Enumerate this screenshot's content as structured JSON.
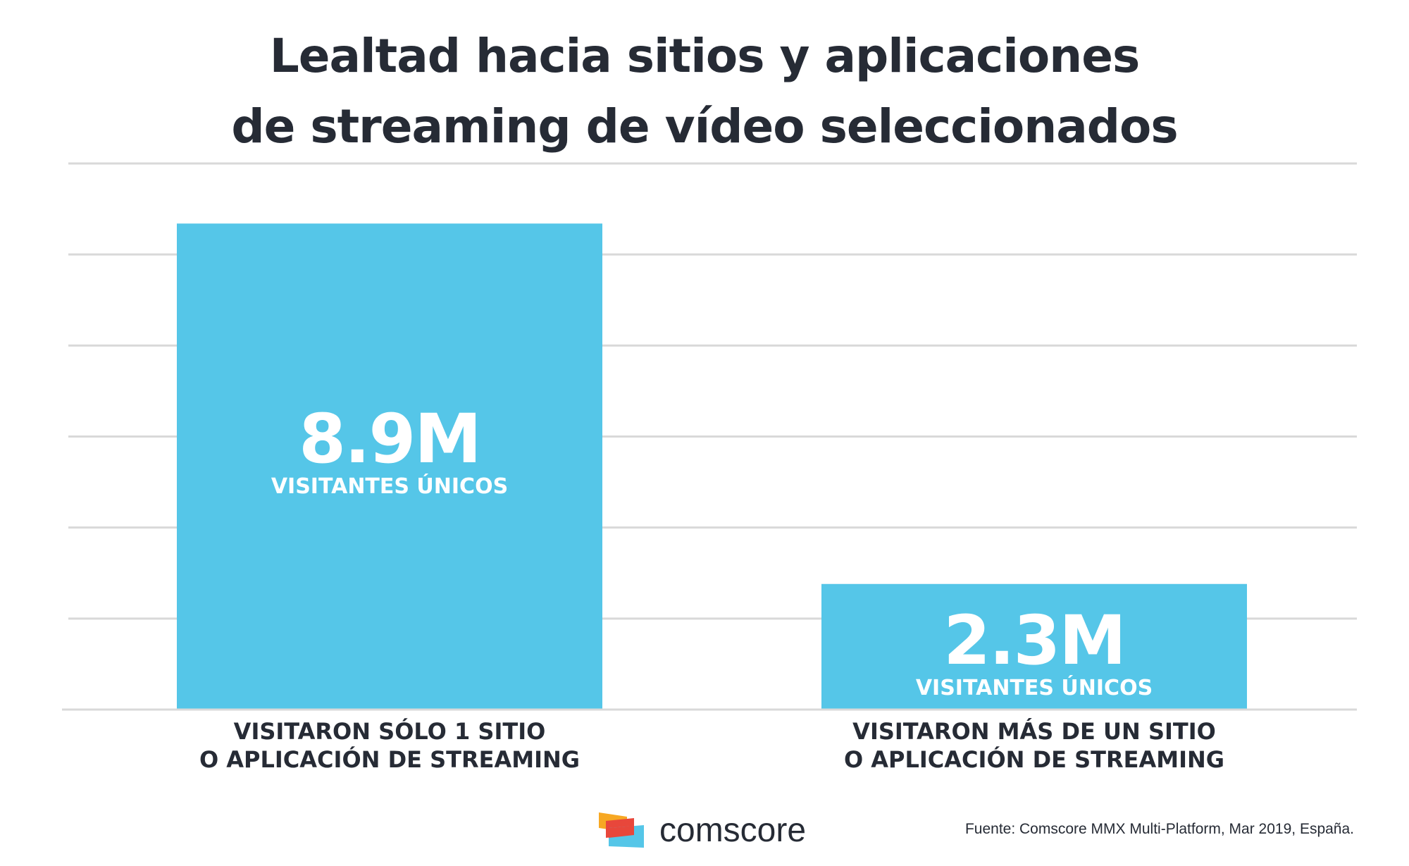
{
  "chart_data": {
    "type": "bar",
    "title": [
      "Lealtad hacia sitios y aplicaciones",
      "de streaming de vídeo seleccionados"
    ],
    "categories": [
      "VISITARON SÓLO 1 SITIO\nO APLICACIÓN DE STREAMING",
      "VISITARON MÁS DE UN SITIO\nO APLICACIÓN DE STREAMING"
    ],
    "values": [
      8.9,
      2.3
    ],
    "value_labels": [
      "8.9M",
      "2.3M"
    ],
    "value_sublabels": [
      "VISITANTES ÚNICOS",
      "VISITANTES ÚNICOS"
    ],
    "ylim": [
      0,
      10
    ],
    "grid": true,
    "bar_color": "#55c6e8",
    "grid_color": "#d9d9d9"
  },
  "brand": {
    "name": "comscore",
    "colors": [
      "#f7a823",
      "#e8473b",
      "#55c6e8"
    ]
  },
  "source": "Fuente: Comscore MMX Multi-Platform, Mar 2019, España."
}
